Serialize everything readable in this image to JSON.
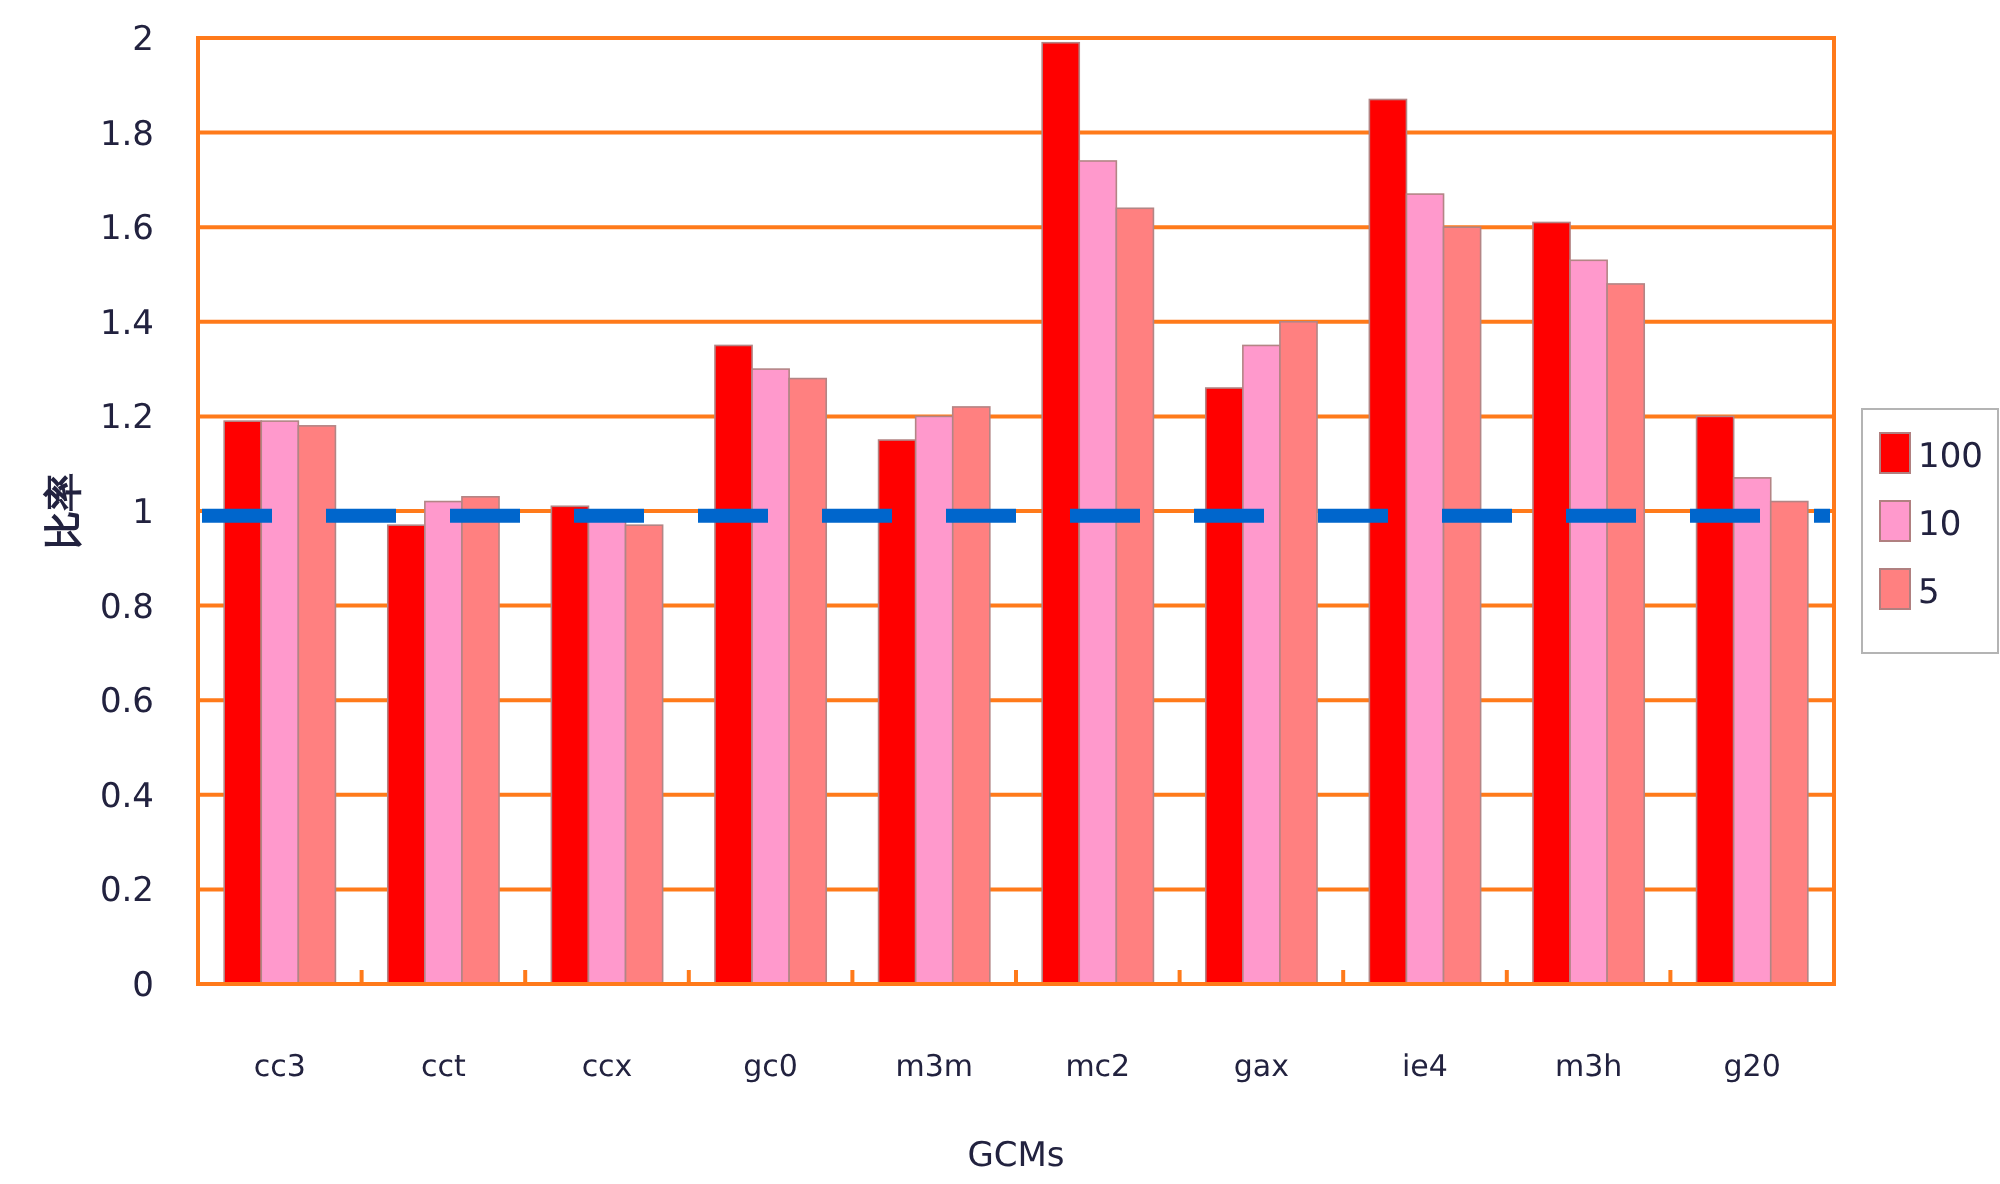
{
  "chart_data": {
    "type": "bar",
    "xlabel": "GCMs",
    "ylabel": "比率",
    "categories": [
      "cc3",
      "cct",
      "ccx",
      "gc0",
      "m3m",
      "mc2",
      "gax",
      "ie4",
      "m3h",
      "g20"
    ],
    "series": [
      {
        "name": "100",
        "color": "#ff0000",
        "values": [
          1.19,
          0.97,
          1.01,
          1.35,
          1.15,
          1.99,
          1.26,
          1.87,
          1.61,
          1.2
        ]
      },
      {
        "name": "10",
        "color": "#ff99cc",
        "values": [
          1.19,
          1.02,
          0.98,
          1.3,
          1.2,
          1.74,
          1.35,
          1.67,
          1.53,
          1.07
        ]
      },
      {
        "name": "5",
        "color": "#ff8080",
        "values": [
          1.18,
          1.03,
          0.97,
          1.28,
          1.22,
          1.64,
          1.4,
          1.6,
          1.48,
          1.02
        ]
      }
    ],
    "ylim": [
      0,
      2
    ],
    "yticks": [
      0,
      0.2,
      0.4,
      0.6,
      0.8,
      1,
      1.2,
      1.4,
      1.6,
      1.8,
      2
    ],
    "grid": "y",
    "legend": "right",
    "ref_lines": [
      {
        "axis": "y",
        "value": 0.99,
        "color": "#0066cc",
        "line_style": "dashed"
      }
    ]
  }
}
